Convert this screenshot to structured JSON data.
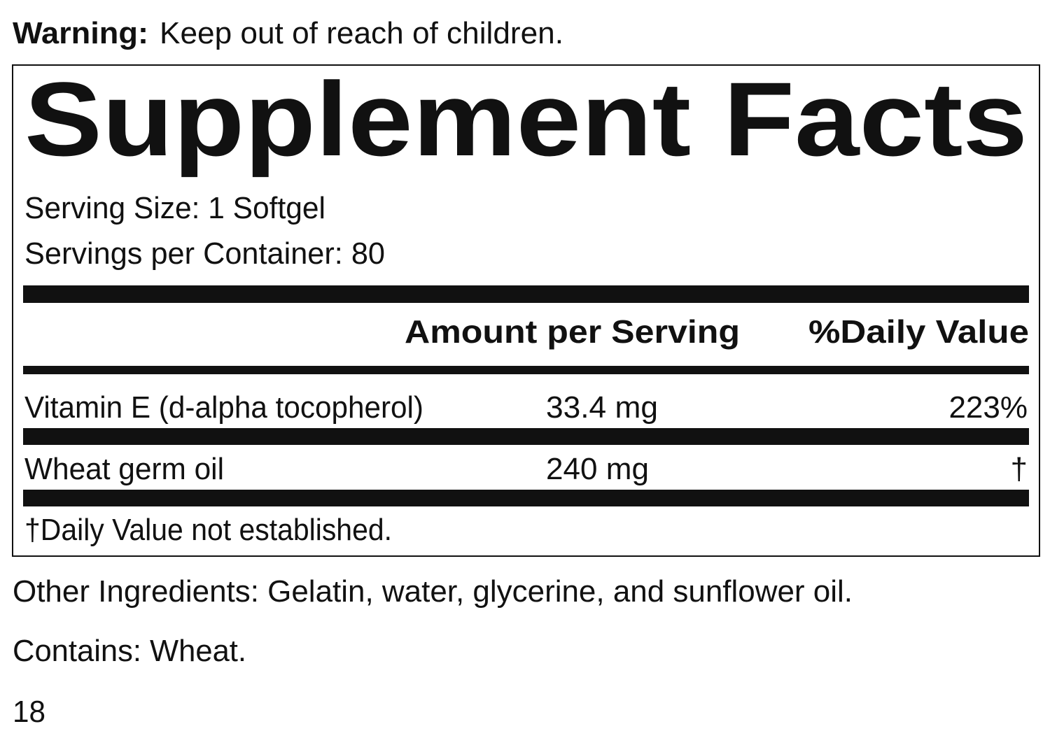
{
  "warning": {
    "label": "Warning:",
    "text": "Keep out of reach of children."
  },
  "facts": {
    "title": "Supplement Facts",
    "serving_size": "Serving Size: 1 Softgel",
    "servings_per_container": "Servings per Container: 80",
    "header": {
      "amount": "Amount per Serving",
      "daily_value": "%Daily Value"
    },
    "rows": [
      [
        "Vitamin E (d-alpha tocopherol)",
        "33.4 mg",
        "223%"
      ],
      [
        "Wheat germ oil",
        "240 mg",
        "†"
      ]
    ],
    "footnote": "†Daily Value not established."
  },
  "other_ingredients": "Other Ingredients: Gelatin, water, glycerine, and sunflower oil.",
  "contains": "Contains: Wheat.",
  "page_number": "18"
}
